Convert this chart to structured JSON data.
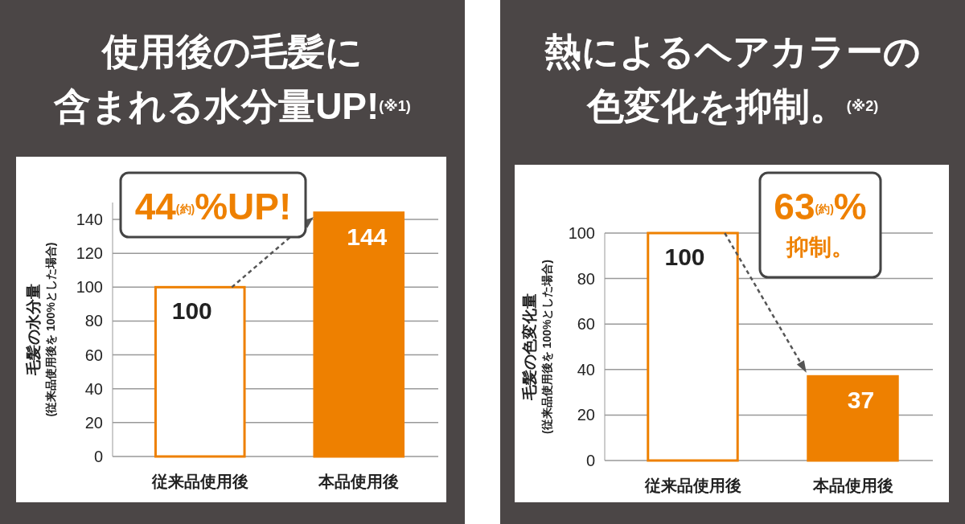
{
  "chart_data": [
    {
      "type": "bar",
      "title": "使用後の毛髪に含まれる水分量UP!$^{(※1)}$",
      "ylabel": "毛髪の水分量\n(従来品使用後を 100%とした場合)",
      "categories": [
        "従来品使用後",
        "本品使用後"
      ],
      "values": [
        100,
        144
      ],
      "colors": [
        "#ffffff",
        "#ee8000"
      ],
      "ylim": [
        0,
        150
      ],
      "yticks": [
        0,
        20,
        40,
        60,
        80,
        100,
        120,
        140
      ],
      "grid": "y",
      "data_labels": true,
      "annotations": [
        {
          "text": "44$^{(約)}$%UP!",
          "x": "本品使用後",
          "y": 144
        }
      ]
    },
    {
      "type": "bar",
      "title": "熱によるヘアカラーの色変化を抑制。$^{(※2)}$",
      "ylabel": "毛髪の色変化量\n(従来品使用後を 100%とした場合)",
      "categories": [
        "従来品使用後",
        "本品使用後"
      ],
      "values": [
        100,
        37
      ],
      "colors": [
        "#ffffff",
        "#ee8000"
      ],
      "ylim": [
        0,
        100
      ],
      "yticks": [
        0,
        20,
        40,
        60,
        80,
        100
      ],
      "grid": "y",
      "data_labels": true,
      "annotations": [
        "63$^{(約)}$%\n抑制。"
      ]
    }
  ]
}
